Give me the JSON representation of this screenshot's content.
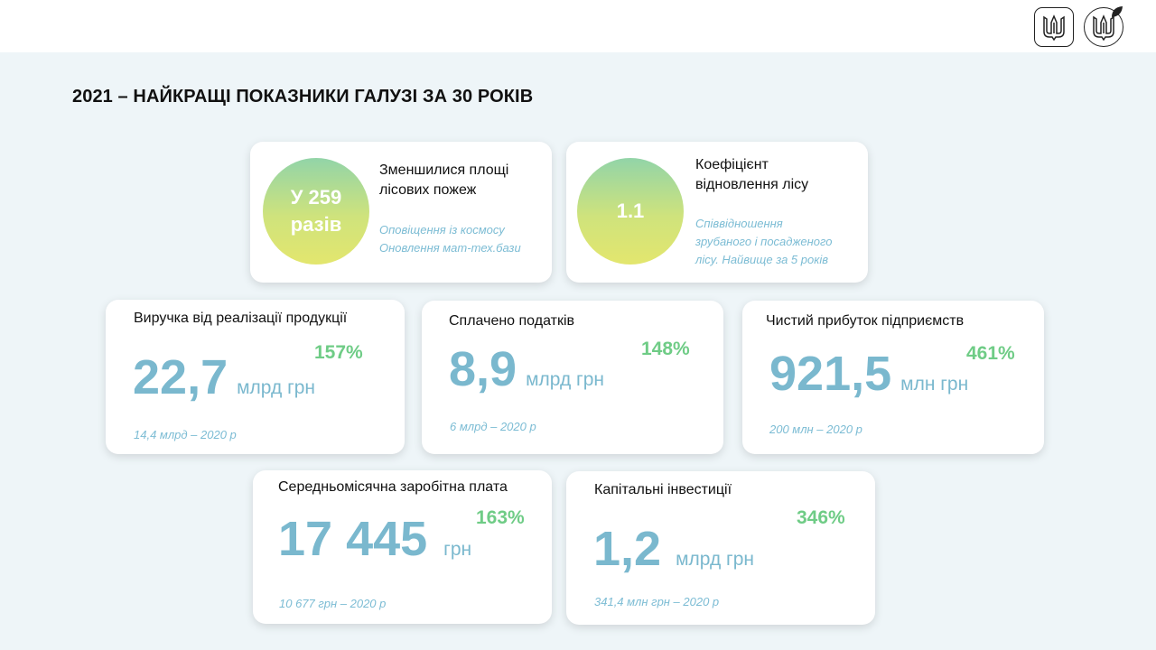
{
  "title": "2021 – НАЙКРАЩІ ПОКАЗНИКИ ГАЛУЗІ ЗА 30 РОКІВ",
  "logos": [
    "trident-emblem-icon",
    "trident-leaf-emblem-icon"
  ],
  "colors": {
    "background": "#eef5f8",
    "value_blue": "#7ab8ce",
    "percent_green": "#6fcc86",
    "note_blue": "#7cbcd4",
    "circle_gradient": [
      "#92d4a8",
      "#e3e66e"
    ]
  },
  "highlights": [
    {
      "circle_line1": "У 259",
      "circle_line2": "разів",
      "title_line1": "Зменшилися площі",
      "title_line2": "лісових пожеж",
      "note_line1": "Оповіщення із космосу",
      "note_line2": "Оновлення мат-тех.бази"
    },
    {
      "circle_line1": "1.1",
      "title_line1": "Коефіцієнт",
      "title_line2": "відновлення лісу",
      "note_line1": "Співвідношення",
      "note_line2": "зрубаного і посадженого",
      "note_line3": "лісу. Найвище за 5 років"
    }
  ],
  "metrics": [
    {
      "label": "Виручка від реалізації продукції",
      "value": "22,7",
      "unit": "млрд грн",
      "percent": "157%",
      "previous": "14,4 млрд – 2020 р"
    },
    {
      "label": "Сплачено податків",
      "value": "8,9",
      "unit": "млрд грн",
      "percent": "148%",
      "previous": "6 млрд – 2020 р"
    },
    {
      "label": "Чистий прибуток підприємств",
      "value": "921,5",
      "unit": "млн грн",
      "percent": "461%",
      "previous": "200 млн – 2020 р"
    },
    {
      "label": "Середньомісячна заробітна плата",
      "value": "17 445",
      "unit": "грн",
      "percent": "163%",
      "previous": "10 677 грн – 2020 р"
    },
    {
      "label": "Капітальні інвестиції",
      "value": "1,2",
      "unit": "млрд грн",
      "percent": "346%",
      "previous": "341,4 млн грн – 2020 р"
    }
  ]
}
